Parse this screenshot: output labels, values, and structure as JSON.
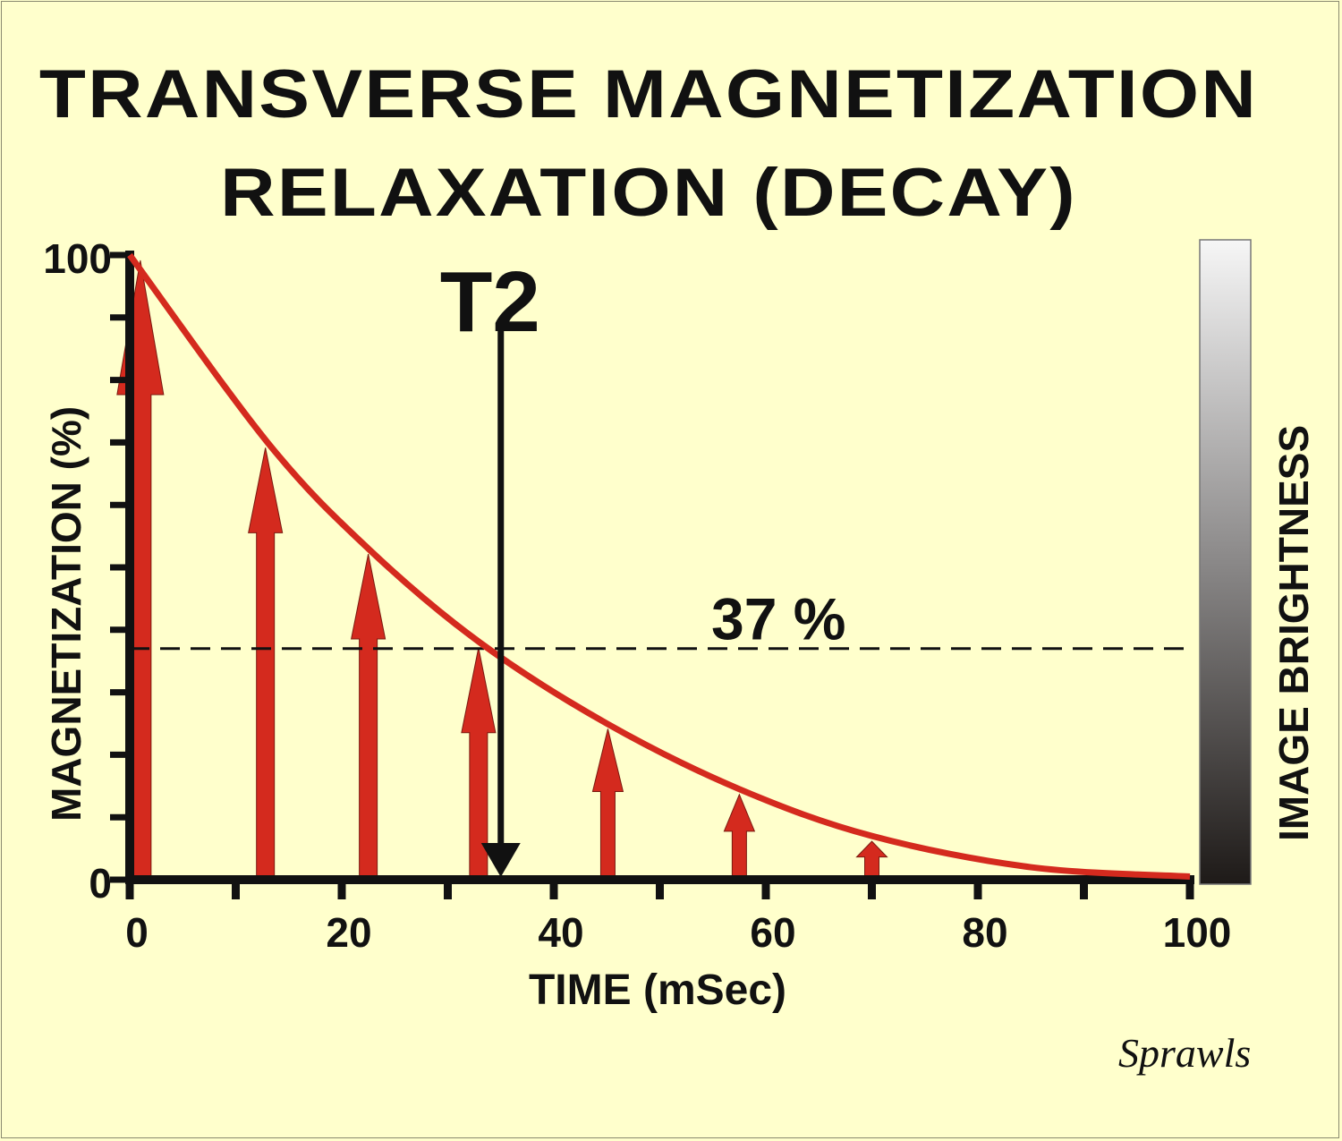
{
  "title_line1": "TRANSVERSE  MAGNETIZATION",
  "title_line2": "RELAXATION (DECAY)",
  "signature": "Sprawls",
  "chart_data": {
    "type": "line",
    "title": "TRANSVERSE MAGNETIZATION RELAXATION (DECAY)",
    "xlabel": "TIME (mSec)",
    "ylabel": "MAGNETIZATION (%)",
    "right_label": "IMAGE BRIGHTNESS",
    "xlim": [
      0,
      100
    ],
    "ylim": [
      0,
      100
    ],
    "x_ticks": [
      0,
      20,
      40,
      60,
      80,
      100
    ],
    "x_minor_step": 10,
    "y_ticks": [
      0,
      100
    ],
    "y_minor_step": 10,
    "curve": {
      "x": [
        0,
        13,
        22.5,
        33,
        45,
        57.5,
        70,
        85,
        100
      ],
      "y": [
        100,
        70,
        53,
        38,
        25,
        14.5,
        7,
        2,
        0.5
      ],
      "color": "#d42a1e"
    },
    "arrows": [
      {
        "x": 1,
        "value": 100
      },
      {
        "x": 12.8,
        "value": 70
      },
      {
        "x": 22.5,
        "value": 53
      },
      {
        "x": 32.9,
        "value": 38
      },
      {
        "x": 45.1,
        "value": 25
      },
      {
        "x": 57.5,
        "value": 14.5
      },
      {
        "x": 70,
        "value": 7
      }
    ],
    "t2_marker": {
      "label": "T2",
      "x": 35
    },
    "reference_line": {
      "label": "37 %",
      "y": 37
    },
    "colors": {
      "arrow": "#d42a1e",
      "axis": "#111111"
    }
  }
}
